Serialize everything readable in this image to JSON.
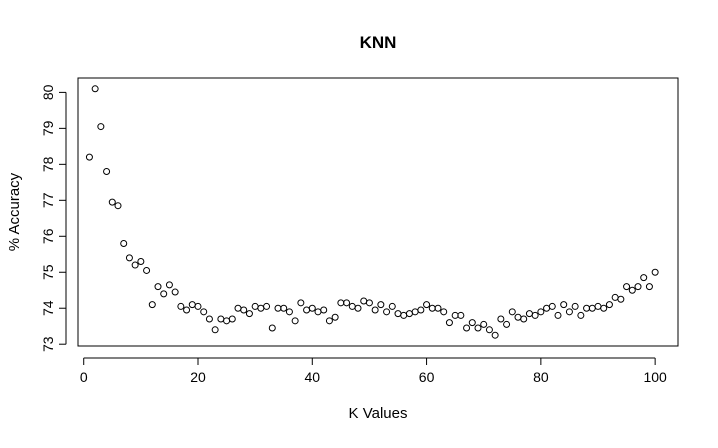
{
  "chart_data": {
    "type": "scatter",
    "title": "KNN",
    "xlabel": "K Values",
    "ylabel": "% Accuracy",
    "xlim": [
      -1,
      104
    ],
    "ylim": [
      72.95,
      80.4
    ],
    "xticks": [
      0,
      20,
      40,
      60,
      80,
      100
    ],
    "yticks": [
      73,
      74,
      75,
      76,
      77,
      78,
      79,
      80
    ],
    "grid": false,
    "x": [
      1,
      2,
      3,
      4,
      5,
      6,
      7,
      8,
      9,
      10,
      11,
      12,
      13,
      14,
      15,
      16,
      17,
      18,
      19,
      20,
      21,
      22,
      23,
      24,
      25,
      26,
      27,
      28,
      29,
      30,
      31,
      32,
      33,
      34,
      35,
      36,
      37,
      38,
      39,
      40,
      41,
      42,
      43,
      44,
      45,
      46,
      47,
      48,
      49,
      50,
      51,
      52,
      53,
      54,
      55,
      56,
      57,
      58,
      59,
      60,
      61,
      62,
      63,
      64,
      65,
      66,
      67,
      68,
      69,
      70,
      71,
      72,
      73,
      74,
      75,
      76,
      77,
      78,
      79,
      80,
      81,
      82,
      83,
      84,
      85,
      86,
      87,
      88,
      89,
      90,
      91,
      92,
      93,
      94,
      95,
      96,
      97,
      98,
      99,
      100
    ],
    "y": [
      78.2,
      80.1,
      79.05,
      77.8,
      76.95,
      76.85,
      75.8,
      75.4,
      75.2,
      75.3,
      75.05,
      74.1,
      74.6,
      74.4,
      74.65,
      74.45,
      74.05,
      73.95,
      74.1,
      74.05,
      73.9,
      73.7,
      73.4,
      73.7,
      73.65,
      73.7,
      74.0,
      73.95,
      73.85,
      74.05,
      74.0,
      74.05,
      73.45,
      74.0,
      74.0,
      73.9,
      73.65,
      74.15,
      73.95,
      74.0,
      73.9,
      73.95,
      73.65,
      73.75,
      74.15,
      74.15,
      74.05,
      74.0,
      74.2,
      74.15,
      73.95,
      74.1,
      73.9,
      74.05,
      73.85,
      73.8,
      73.85,
      73.9,
      73.95,
      74.1,
      74.0,
      74.0,
      73.9,
      73.6,
      73.8,
      73.8,
      73.45,
      73.6,
      73.45,
      73.55,
      73.4,
      73.25,
      73.7,
      73.55,
      73.9,
      73.75,
      73.7,
      73.85,
      73.8,
      73.9,
      74.0,
      74.05,
      73.8,
      74.1,
      73.9,
      74.05,
      73.8,
      74.0,
      74.0,
      74.05,
      74.0,
      74.1,
      74.3,
      74.25,
      74.6,
      74.5,
      74.6,
      74.85,
      74.6,
      75.0
    ]
  }
}
